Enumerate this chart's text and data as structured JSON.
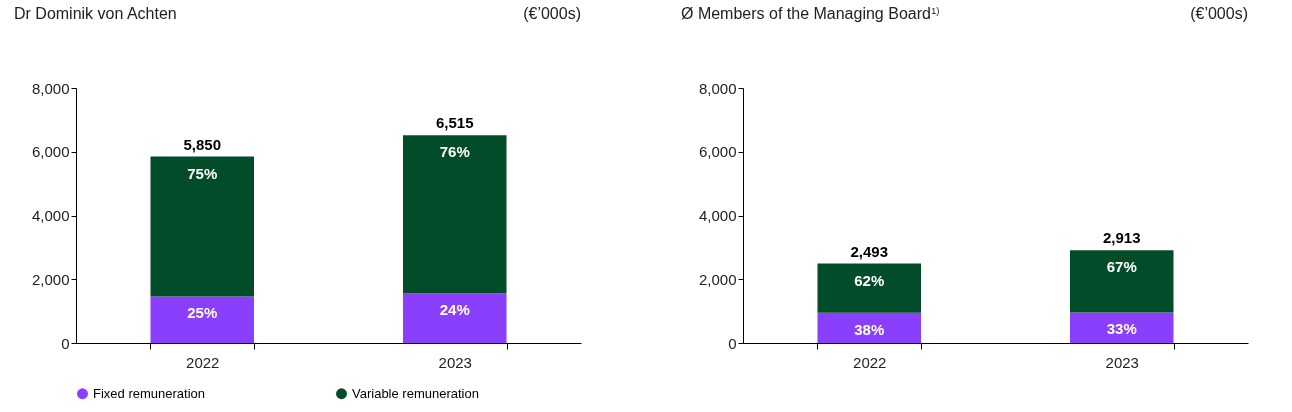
{
  "chart_data": [
    {
      "type": "bar",
      "title": "Dr Dominik von Achten",
      "categories": [
        "2022",
        "2023"
      ],
      "stacked": true,
      "legend": "bottom left",
      "annotations": [
        "(€’000s)",
        {
          "text": "25%",
          "x": "2022",
          "y": 1460
        },
        {
          "text": "24%",
          "x": "2023",
          "y": 1560
        },
        {
          "text": "75%",
          "x": "2022",
          "y": 5850
        },
        {
          "text": "76%",
          "x": "2023",
          "y": 6515
        }
      ],
      "series": [
        {
          "name": "Fixed remuneration",
          "color": "#8a3ffc",
          "values": [
            1460,
            1560
          ]
        },
        {
          "name": "Variable remuneration",
          "color": "#034c2a",
          "values": [
            4390,
            4955
          ]
        }
      ],
      "totals": [
        "5,850",
        "6,515"
      ],
      "ylim": [
        0,
        8000
      ],
      "yticks": [
        {
          "value": 0,
          "label": "0"
        },
        {
          "value": 2000,
          "label": "2,000"
        },
        {
          "value": 4000,
          "label": "4,000"
        },
        {
          "value": 6000,
          "label": "6,000"
        },
        {
          "value": 8000,
          "label": "8,000"
        }
      ]
    },
    {
      "type": "bar",
      "title": "Ø Members of the Managing Board$^{1)}$",
      "categories": [
        "2022",
        "2023"
      ],
      "stacked": true,
      "annotations": [
        "(€’000s)",
        {
          "text": "38%",
          "x": "2022",
          "y": 950
        },
        {
          "text": "33%",
          "x": "2023",
          "y": 960
        },
        {
          "text": "62%",
          "x": "2022",
          "y": 2493
        },
        {
          "text": "67%",
          "x": "2023",
          "y": 2913
        }
      ],
      "series": [
        {
          "color": "#8a3ffc",
          "values": [
            950,
            960
          ]
        },
        {
          "color": "#034c2a",
          "values": [
            1543,
            1953
          ]
        }
      ],
      "totals": [
        "2,493",
        "2,913"
      ],
      "ylim": [
        0,
        8000
      ],
      "yticks": [
        {
          "value": 0,
          "label": "0"
        },
        {
          "value": 2000,
          "label": "2,000"
        },
        {
          "value": 4000,
          "label": "4,000"
        },
        {
          "value": 6000,
          "label": "6,000"
        },
        {
          "value": 8000,
          "label": "8,000"
        }
      ]
    }
  ]
}
